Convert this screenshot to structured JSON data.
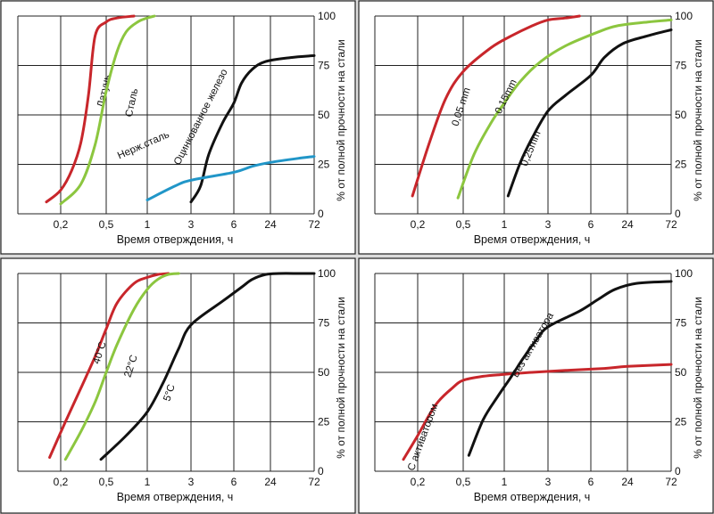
{
  "chart_data": [
    {
      "type": "line",
      "x_tick_labels": [
        "0,2",
        "0,5",
        "1",
        "3",
        "6",
        "24",
        "72"
      ],
      "y_tick_labels": [
        "0",
        "25",
        "50",
        "75",
        "100"
      ],
      "xlabel": "Время отверждения, ч",
      "ylabel": "% от полной прочности на стали",
      "ylim": [
        0,
        100
      ],
      "xscale": "log",
      "grid": true,
      "series": [
        {
          "name": "Латунь",
          "color": "#c8262b",
          "x": [
            0.15,
            0.2,
            0.25,
            0.3,
            0.35,
            0.4,
            0.5,
            0.6,
            0.8
          ],
          "y": [
            6,
            12,
            22,
            36,
            60,
            90,
            97,
            99,
            100
          ]
        },
        {
          "name": "Сталь",
          "color": "#8cc63f",
          "x": [
            0.2,
            0.3,
            0.4,
            0.5,
            0.6,
            0.7,
            0.85,
            1.0,
            1.2
          ],
          "y": [
            5,
            15,
            35,
            62,
            82,
            92,
            97,
            99,
            100
          ]
        },
        {
          "name": "Оцинкованное железо",
          "color": "#111111",
          "x": [
            3,
            3.5,
            4,
            5,
            6,
            8,
            12,
            20,
            40,
            72
          ],
          "y": [
            6,
            14,
            30,
            46,
            56,
            66,
            73,
            77,
            79,
            80
          ]
        },
        {
          "name": "Нерж.сталь",
          "color": "#2196c8",
          "x": [
            1,
            2,
            3,
            6,
            12,
            24,
            48,
            72
          ],
          "y": [
            7,
            14,
            17,
            21,
            24,
            26,
            28,
            29
          ]
        }
      ]
    },
    {
      "type": "line",
      "x_tick_labels": [
        "0,2",
        "0,5",
        "1",
        "3",
        "6",
        "24",
        "72"
      ],
      "y_tick_labels": [
        "0",
        "25",
        "50",
        "75",
        "100"
      ],
      "xlabel": "Время отверждения, ч",
      "ylabel": "% от полной прочности на стали",
      "ylim": [
        0,
        100
      ],
      "xscale": "log",
      "grid": true,
      "series": [
        {
          "name": "0,05 mm",
          "color": "#c8262b",
          "x": [
            0.18,
            0.25,
            0.35,
            0.5,
            0.8,
            1.2,
            2,
            3,
            4,
            5
          ],
          "y": [
            9,
            35,
            58,
            72,
            84,
            90,
            95,
            98,
            99,
            100
          ]
        },
        {
          "name": "0,15mm",
          "color": "#8cc63f",
          "x": [
            0.45,
            0.6,
            0.8,
            1,
            1.5,
            2.5,
            4,
            8,
            16,
            40,
            72
          ],
          "y": [
            8,
            30,
            46,
            56,
            67,
            77,
            85,
            92,
            95,
            97,
            98
          ]
        },
        {
          "name": "0,25mm",
          "color": "#111111",
          "x": [
            1.1,
            1.5,
            2,
            3,
            4,
            6,
            10,
            20,
            40,
            72
          ],
          "y": [
            9,
            26,
            38,
            52,
            60,
            70,
            79,
            86,
            90,
            93
          ]
        }
      ]
    },
    {
      "type": "line",
      "x_tick_labels": [
        "0,2",
        "0,5",
        "1",
        "3",
        "6",
        "24",
        "72"
      ],
      "y_tick_labels": [
        "0",
        "25",
        "50",
        "75",
        "100"
      ],
      "xlabel": "Время отверждения, ч",
      "ylabel": "% от полной прочности на стали",
      "ylim": [
        0,
        100
      ],
      "xscale": "log",
      "grid": true,
      "series": [
        {
          "name": "40°C",
          "color": "#c8262b",
          "x": [
            0.16,
            0.22,
            0.3,
            0.4,
            0.5,
            0.6,
            0.8,
            1.0,
            1.3,
            1.7
          ],
          "y": [
            7,
            25,
            42,
            58,
            72,
            85,
            95,
            98,
            99.5,
            100
          ]
        },
        {
          "name": "22°C",
          "color": "#8cc63f",
          "x": [
            0.22,
            0.3,
            0.4,
            0.5,
            0.6,
            0.8,
            1.0,
            1.3,
            1.7,
            2.2
          ],
          "y": [
            6,
            20,
            35,
            50,
            64,
            82,
            92,
            97,
            99.5,
            100
          ]
        },
        {
          "name": "5°C",
          "color": "#111111",
          "x": [
            0.45,
            0.7,
            1.0,
            1.5,
            2.2,
            3,
            5,
            8,
            12,
            20,
            30,
            50,
            72
          ],
          "y": [
            6,
            18,
            30,
            45,
            62,
            74,
            86,
            93,
            97,
            99.5,
            100,
            100,
            100
          ]
        }
      ]
    },
    {
      "type": "line",
      "x_tick_labels": [
        "0,2",
        "0,5",
        "1",
        "3",
        "6",
        "24",
        "72"
      ],
      "y_tick_labels": [
        "0",
        "25",
        "50",
        "75",
        "100"
      ],
      "xlabel": "Время отверждения, ч",
      "ylabel": "% от полной прочности на стали",
      "ylim": [
        0,
        100
      ],
      "xscale": "log",
      "grid": true,
      "series": [
        {
          "name": "С активатором",
          "color": "#c8262b",
          "x": [
            0.15,
            0.2,
            0.25,
            0.3,
            0.4,
            0.5,
            0.7,
            1,
            2,
            4,
            10,
            24,
            72
          ],
          "y": [
            6,
            18,
            28,
            35,
            42,
            46,
            48,
            49,
            50,
            51,
            52,
            53,
            54
          ]
        },
        {
          "name": "Без активатора",
          "color": "#111111",
          "x": [
            0.55,
            0.7,
            0.9,
            1.2,
            1.6,
            2.2,
            3,
            5,
            8,
            15,
            30,
            72
          ],
          "y": [
            8,
            26,
            38,
            48,
            57,
            66,
            73,
            81,
            87,
            92,
            95,
            96
          ]
        }
      ]
    }
  ]
}
